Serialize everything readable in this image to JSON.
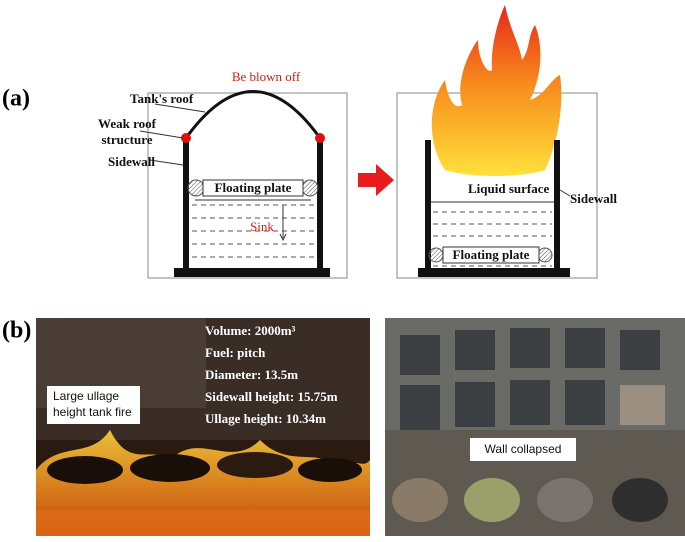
{
  "panel_a": {
    "label": "(a)",
    "left": {
      "blown_off": "Be blown off",
      "roof": "Tank's roof",
      "weak_roof": [
        "Weak roof",
        "structure"
      ],
      "sidewall": "Sidewall",
      "floating_plate": "Floating plate",
      "sink": "Sink"
    },
    "right": {
      "liquid_surface": "Liquid surface",
      "sidewall": "Sidewall",
      "floating_plate": "Floating plate"
    }
  },
  "panel_b": {
    "label": "(b)",
    "left_photo": {
      "specs": [
        "Volume: 2000m³",
        "Fuel: pitch",
        "Diameter: 13.5m",
        "Sidewall height: 15.75m",
        "Ullage height: 10.34m"
      ],
      "caption": [
        "Large ullage",
        "height tank fire"
      ]
    },
    "right_photo": {
      "caption": "Wall collapsed"
    }
  }
}
